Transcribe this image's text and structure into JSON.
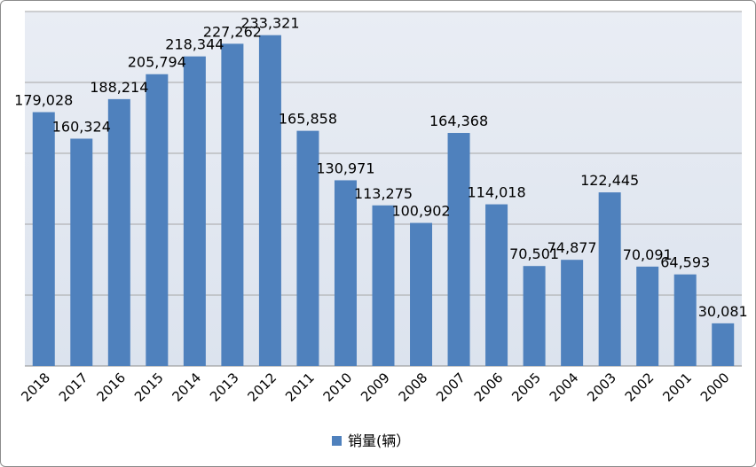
{
  "chart_data": {
    "type": "bar",
    "title": "",
    "xlabel": "",
    "ylabel": "",
    "ylim": [
      0,
      250000
    ],
    "grid": true,
    "legend_position": "bottom",
    "colors": {
      "bar": "#4f81bd",
      "plot_bg_top": "#e9edf4",
      "plot_bg_bottom": "#dce3ee",
      "grid": "#a6a6a6"
    },
    "categories": [
      "2018",
      "2017",
      "2016",
      "2015",
      "2014",
      "2013",
      "2012",
      "2011",
      "2010",
      "2009",
      "2008",
      "2007",
      "2006",
      "2005",
      "2004",
      "2003",
      "2002",
      "2001",
      "2000"
    ],
    "series": [
      {
        "name": "销量(辆）",
        "values": [
          179028,
          160324,
          188214,
          205794,
          218344,
          227262,
          233321,
          165858,
          130971,
          113275,
          100902,
          164368,
          114018,
          70501,
          74877,
          122445,
          70091,
          64593,
          30081
        ],
        "labels": [
          "179,028",
          "160,324",
          "188,214",
          "205,794",
          "218,344",
          "227,262",
          "233,321",
          "165,858",
          "130,971",
          "113,275",
          "100,902",
          "164,368",
          "114,018",
          "70,501",
          "74,877",
          "122,445",
          "70,091",
          "64,593",
          "30,081"
        ]
      }
    ]
  }
}
